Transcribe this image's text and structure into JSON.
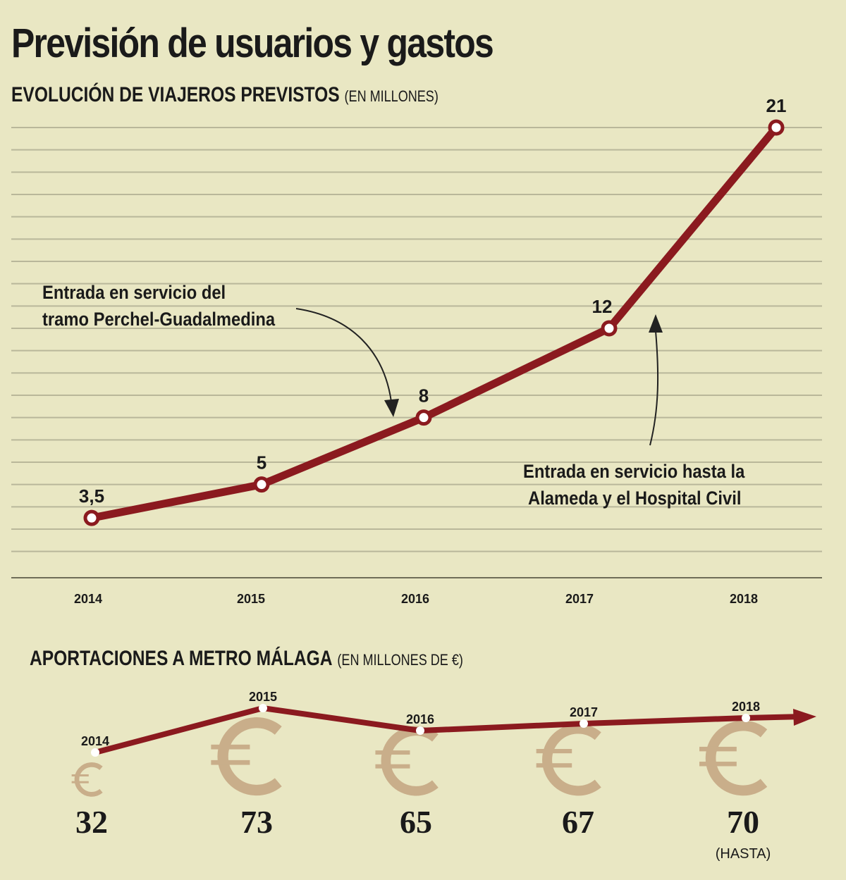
{
  "title": "Previsión de usuarios y gastos",
  "colors": {
    "background": "#e9e7c3",
    "line": "#8b1a1f",
    "grid": "#b9b79a",
    "euro": "#c9ae8a",
    "text": "#1a1a1a"
  },
  "chart_data": [
    {
      "type": "line",
      "title": "EVOLUCIÓN DE VIAJEROS PREVISTOS",
      "unit_note": "(EN MILLONES)",
      "categories": [
        "2014",
        "2015",
        "2016",
        "2017",
        "2018"
      ],
      "values": [
        3.5,
        5,
        8,
        12,
        21
      ],
      "data_labels": [
        "3,5",
        "5",
        "8",
        "12",
        "21"
      ],
      "ylim": [
        0,
        21
      ],
      "grid": true,
      "annotations": [
        {
          "text_line1": "Entrada en servicio del",
          "text_line2": "tramo Perchel-Guadalmedina",
          "points_to": "2016"
        },
        {
          "text_line1": "Entrada en servicio hasta la",
          "text_line2": "Alameda y el Hospital Civil",
          "points_to": "2017-2018"
        }
      ]
    },
    {
      "type": "line",
      "title": "APORTACIONES A METRO MÁLAGA",
      "unit_note": "(EN MILLONES DE €)",
      "categories": [
        "2014",
        "2015",
        "2016",
        "2017",
        "2018"
      ],
      "values": [
        32,
        73,
        65,
        67,
        70
      ],
      "data_labels": [
        "32",
        "73",
        "65",
        "67",
        "70"
      ],
      "value_notes": [
        "",
        "",
        "",
        "",
        "(HASTA)"
      ],
      "icon": "euro-icon"
    }
  ]
}
